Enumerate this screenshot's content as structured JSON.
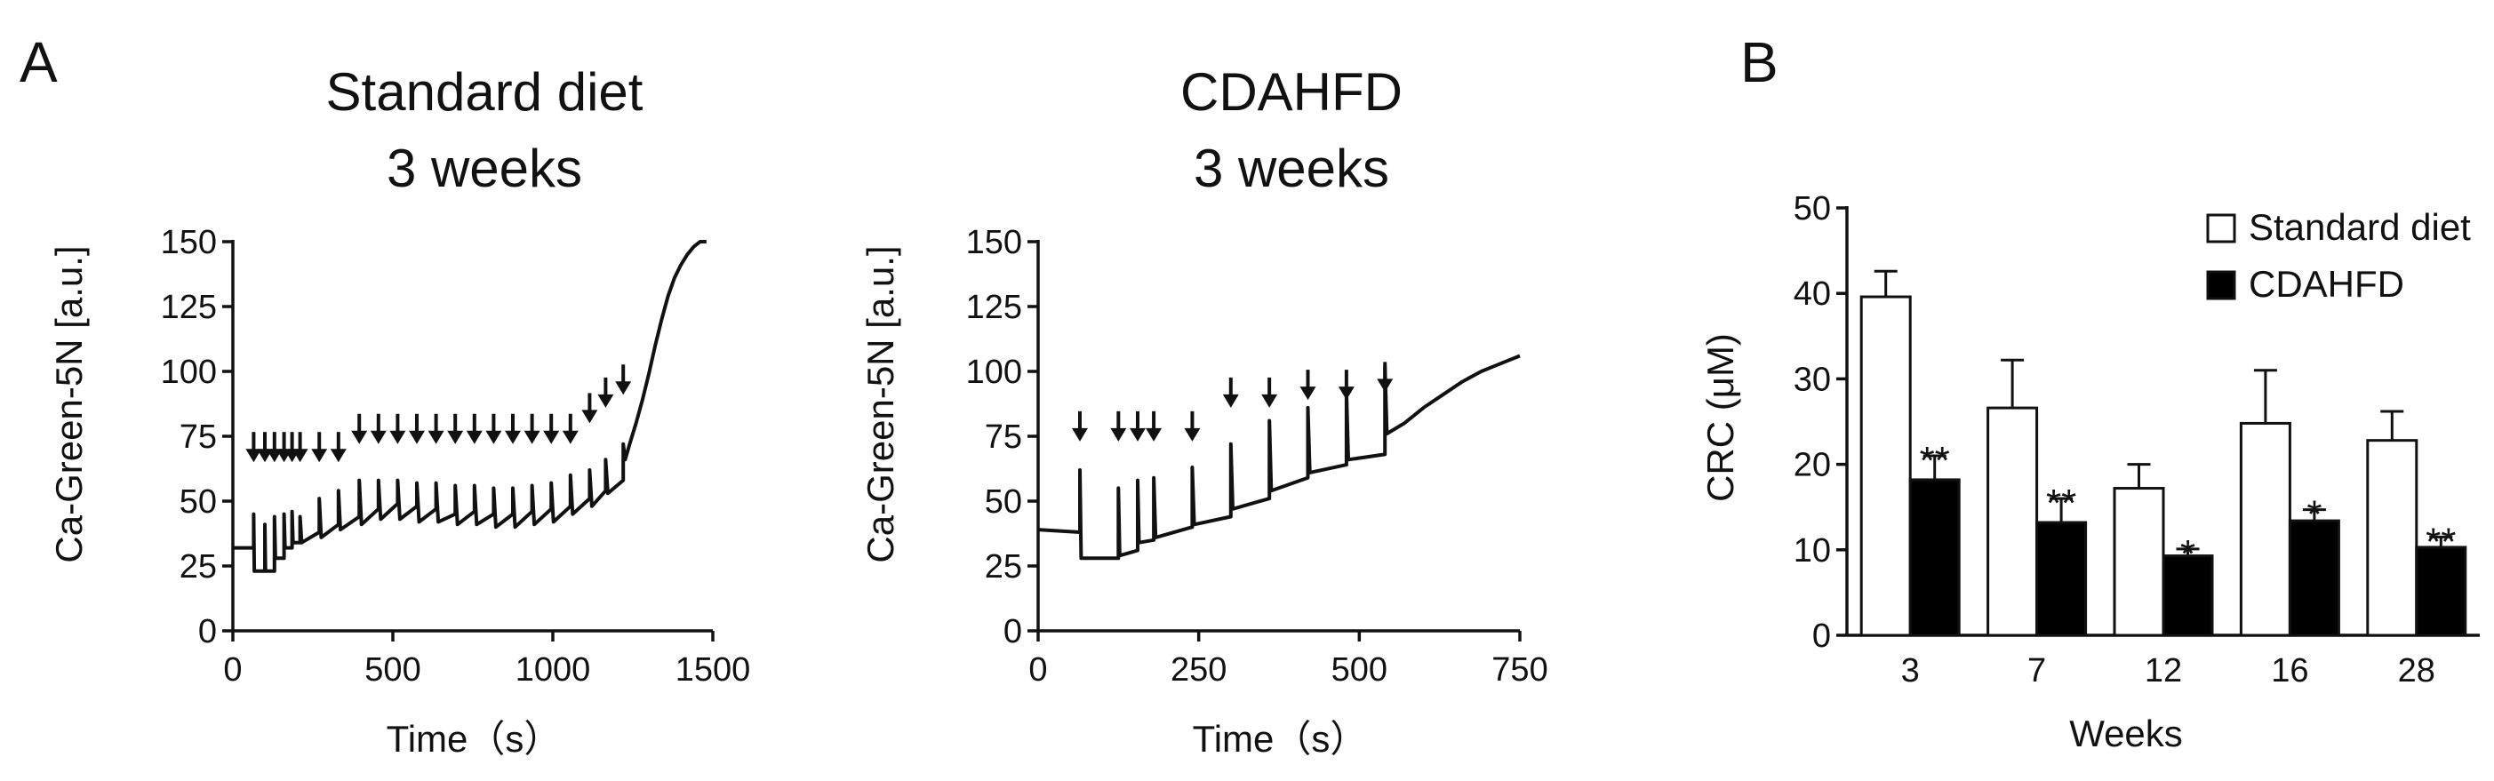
{
  "panel_labels": {
    "a": "A",
    "b": "B"
  },
  "chart_data": [
    {
      "type": "line",
      "title_lines": [
        "Standard diet",
        "3 weeks"
      ],
      "xlabel": "Time（s）",
      "ylabel": "Ca-Green-5N [a.u.]",
      "xlim": [
        0,
        1500
      ],
      "ylim": [
        0,
        150
      ],
      "xticks": [
        0,
        500,
        1000,
        1500
      ],
      "yticks": [
        0,
        25,
        50,
        75,
        100,
        125,
        150
      ],
      "additions_s": [
        65,
        100,
        130,
        160,
        185,
        210,
        270,
        330,
        395,
        455,
        515,
        575,
        635,
        695,
        755,
        815,
        875,
        935,
        995,
        1055,
        1115,
        1165,
        1220
      ],
      "arrow_level": [
        65,
        65,
        65,
        65,
        65,
        65,
        65,
        65,
        72,
        72,
        72,
        72,
        72,
        72,
        72,
        72,
        72,
        72,
        72,
        72,
        80,
        86,
        91
      ],
      "series": [
        {
          "x": [
            0,
            65,
            65,
            67,
            100,
            100,
            102,
            130,
            130,
            133,
            160,
            160,
            163,
            185,
            185,
            188,
            210,
            210,
            215,
            270,
            270,
            276,
            330,
            330,
            336,
            395,
            395,
            402,
            455,
            455,
            462,
            515,
            515,
            522,
            575,
            575,
            582,
            635,
            635,
            642,
            695,
            695,
            702,
            755,
            755,
            762,
            815,
            815,
            822,
            875,
            875,
            882,
            935,
            935,
            942,
            995,
            995,
            1002,
            1055,
            1055,
            1062,
            1115,
            1115,
            1122,
            1165,
            1165,
            1172,
            1220,
            1220,
            1226,
            1240,
            1260,
            1280,
            1300,
            1320,
            1340,
            1360,
            1380,
            1400,
            1420,
            1440,
            1460,
            1480
          ],
          "y": [
            32,
            32,
            45,
            23,
            23,
            41,
            23,
            23,
            44,
            28,
            28,
            45,
            32,
            32,
            46,
            34,
            34,
            44,
            34,
            38,
            51,
            36,
            41,
            54,
            39,
            44,
            58,
            41,
            47,
            58,
            43,
            49,
            58,
            43,
            48,
            57,
            42,
            47,
            57,
            42,
            45,
            56,
            41,
            46,
            56,
            41,
            45,
            55,
            40,
            45,
            55,
            40,
            46,
            56,
            41,
            47,
            57,
            42,
            48,
            60,
            45,
            51,
            62,
            48,
            54,
            66,
            53,
            58,
            72,
            66,
            72,
            80,
            89,
            99,
            110,
            120,
            129,
            136,
            141,
            145,
            148,
            150,
            150
          ]
        }
      ]
    },
    {
      "type": "line",
      "title_lines": [
        "CDAHFD",
        "3 weeks"
      ],
      "xlabel": "Time（s）",
      "ylabel": "Ca-Green-5N [a.u.]",
      "xlim": [
        0,
        750
      ],
      "ylim": [
        0,
        150
      ],
      "xticks": [
        0,
        250,
        500,
        750
      ],
      "yticks": [
        0,
        25,
        50,
        75,
        100,
        125,
        150
      ],
      "additions_s": [
        65,
        125,
        155,
        180,
        240,
        300,
        360,
        420,
        480,
        540
      ],
      "arrow_level": [
        73,
        73,
        73,
        73,
        73,
        86,
        86,
        89,
        89,
        92
      ],
      "series": [
        {
          "x": [
            0,
            65,
            65,
            67,
            125,
            125,
            127,
            155,
            155,
            157,
            180,
            180,
            183,
            240,
            240,
            243,
            300,
            300,
            303,
            360,
            360,
            363,
            420,
            420,
            423,
            480,
            480,
            483,
            540,
            540,
            543,
            570,
            600,
            630,
            660,
            690,
            720,
            750
          ],
          "y": [
            39,
            38,
            62,
            28,
            28,
            55,
            29,
            31,
            58,
            34,
            35,
            59,
            36,
            40,
            63,
            41,
            44,
            72,
            47,
            51,
            81,
            54,
            59,
            86,
            61,
            64,
            92,
            66,
            68,
            102,
            76,
            80,
            86,
            91,
            96,
            100,
            103,
            106
          ]
        }
      ]
    },
    {
      "type": "bar",
      "title": "",
      "xlabel": "Weeks",
      "ylabel": "CRC (μM)",
      "categories": [
        "3",
        "7",
        "12",
        "16",
        "28"
      ],
      "ylim": [
        0,
        50
      ],
      "yticks": [
        0,
        10,
        20,
        30,
        40,
        50
      ],
      "legend_position": "top-right",
      "series": [
        {
          "name": "Standard diet",
          "color": "#ffffff",
          "values": [
            39.6,
            26.6,
            17.2,
            24.8,
            22.8
          ],
          "errors": [
            3.0,
            5.6,
            2.8,
            6.2,
            3.4
          ],
          "significance": [
            "",
            "",
            "",
            "",
            ""
          ]
        },
        {
          "name": "CDAHFD",
          "color": "#000000",
          "values": [
            18.2,
            13.2,
            9.3,
            13.4,
            10.3
          ],
          "errors": [
            2.8,
            2.8,
            0.8,
            1.3,
            1.2
          ],
          "significance": [
            "**",
            "**",
            "*",
            "*",
            "**"
          ]
        }
      ]
    }
  ]
}
